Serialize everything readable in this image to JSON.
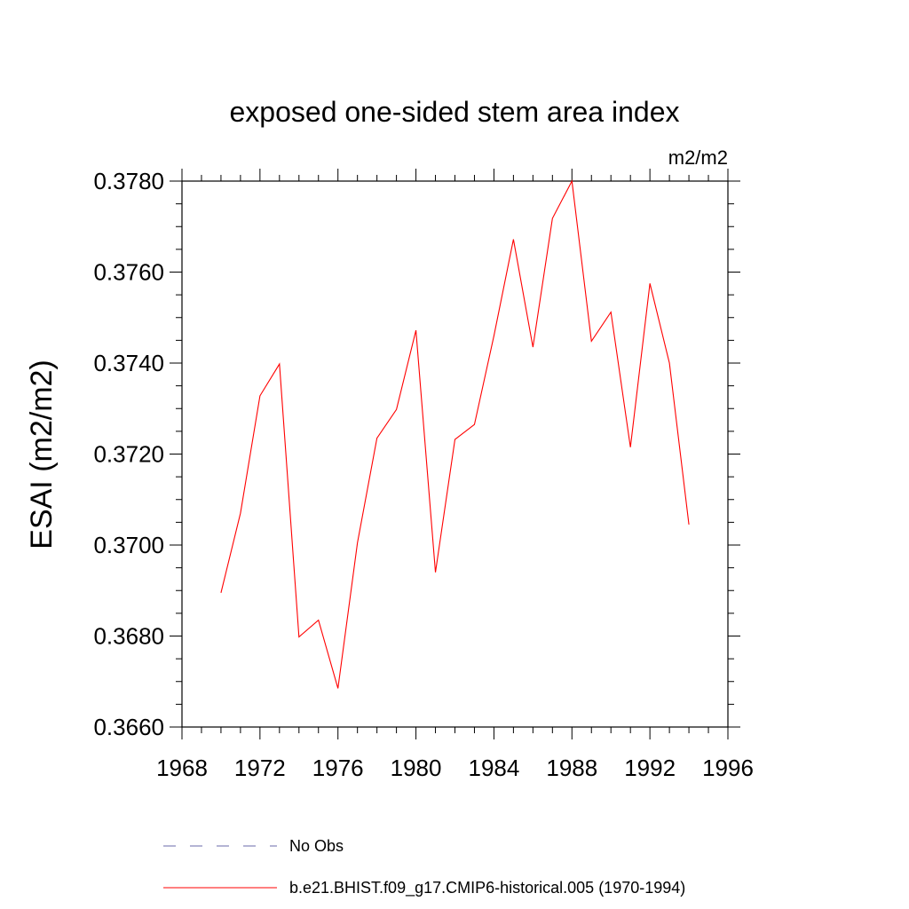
{
  "chart_data": {
    "type": "line",
    "title": "exposed one-sided stem area index",
    "units_label": "m2/m2",
    "ylabel": "ESAI  (m2/m2)",
    "xlabel": "",
    "xlim": [
      1968,
      1996
    ],
    "ylim": [
      0.366,
      0.378
    ],
    "x_ticks": [
      1968,
      1972,
      1976,
      1980,
      1984,
      1988,
      1992,
      1996
    ],
    "x_tick_labels": [
      "1968",
      "1972",
      "1976",
      "1980",
      "1984",
      "1988",
      "1992",
      "1996"
    ],
    "x_minor_step": 1,
    "y_ticks": [
      0.366,
      0.368,
      0.37,
      0.372,
      0.374,
      0.376,
      0.378
    ],
    "y_tick_labels": [
      "0.3660",
      "0.3680",
      "0.3700",
      "0.3720",
      "0.3740",
      "0.3760",
      "0.3780"
    ],
    "y_minor_step": 0.0005,
    "grid": false,
    "legend_position": "bottom",
    "series": [
      {
        "name": "b.e21.BHIST.f09_g17.CMIP6-historical.005 (1970-1994)",
        "color": "#ff0000",
        "style": "solid",
        "x": [
          1970,
          1971,
          1972,
          1973,
          1974,
          1975,
          1976,
          1977,
          1978,
          1979,
          1980,
          1981,
          1982,
          1983,
          1984,
          1985,
          1986,
          1987,
          1988,
          1989,
          1990,
          1991,
          1992,
          1993,
          1994
        ],
        "values": [
          0.36895,
          0.3707,
          0.37328,
          0.37398,
          0.36798,
          0.36835,
          0.36685,
          0.37005,
          0.37235,
          0.37298,
          0.37472,
          0.3694,
          0.37232,
          0.37265,
          0.3746,
          0.37672,
          0.37435,
          0.37718,
          0.378,
          0.37448,
          0.37512,
          0.37215,
          0.37575,
          0.374,
          0.37045
        ]
      }
    ],
    "legend": [
      {
        "label": "No Obs",
        "color": "#6a6aa8",
        "style": "dashed"
      },
      {
        "label": "b.e21.BHIST.f09_g17.CMIP6-historical.005 (1970-1994)",
        "color": "#ff0000",
        "style": "solid"
      }
    ]
  }
}
